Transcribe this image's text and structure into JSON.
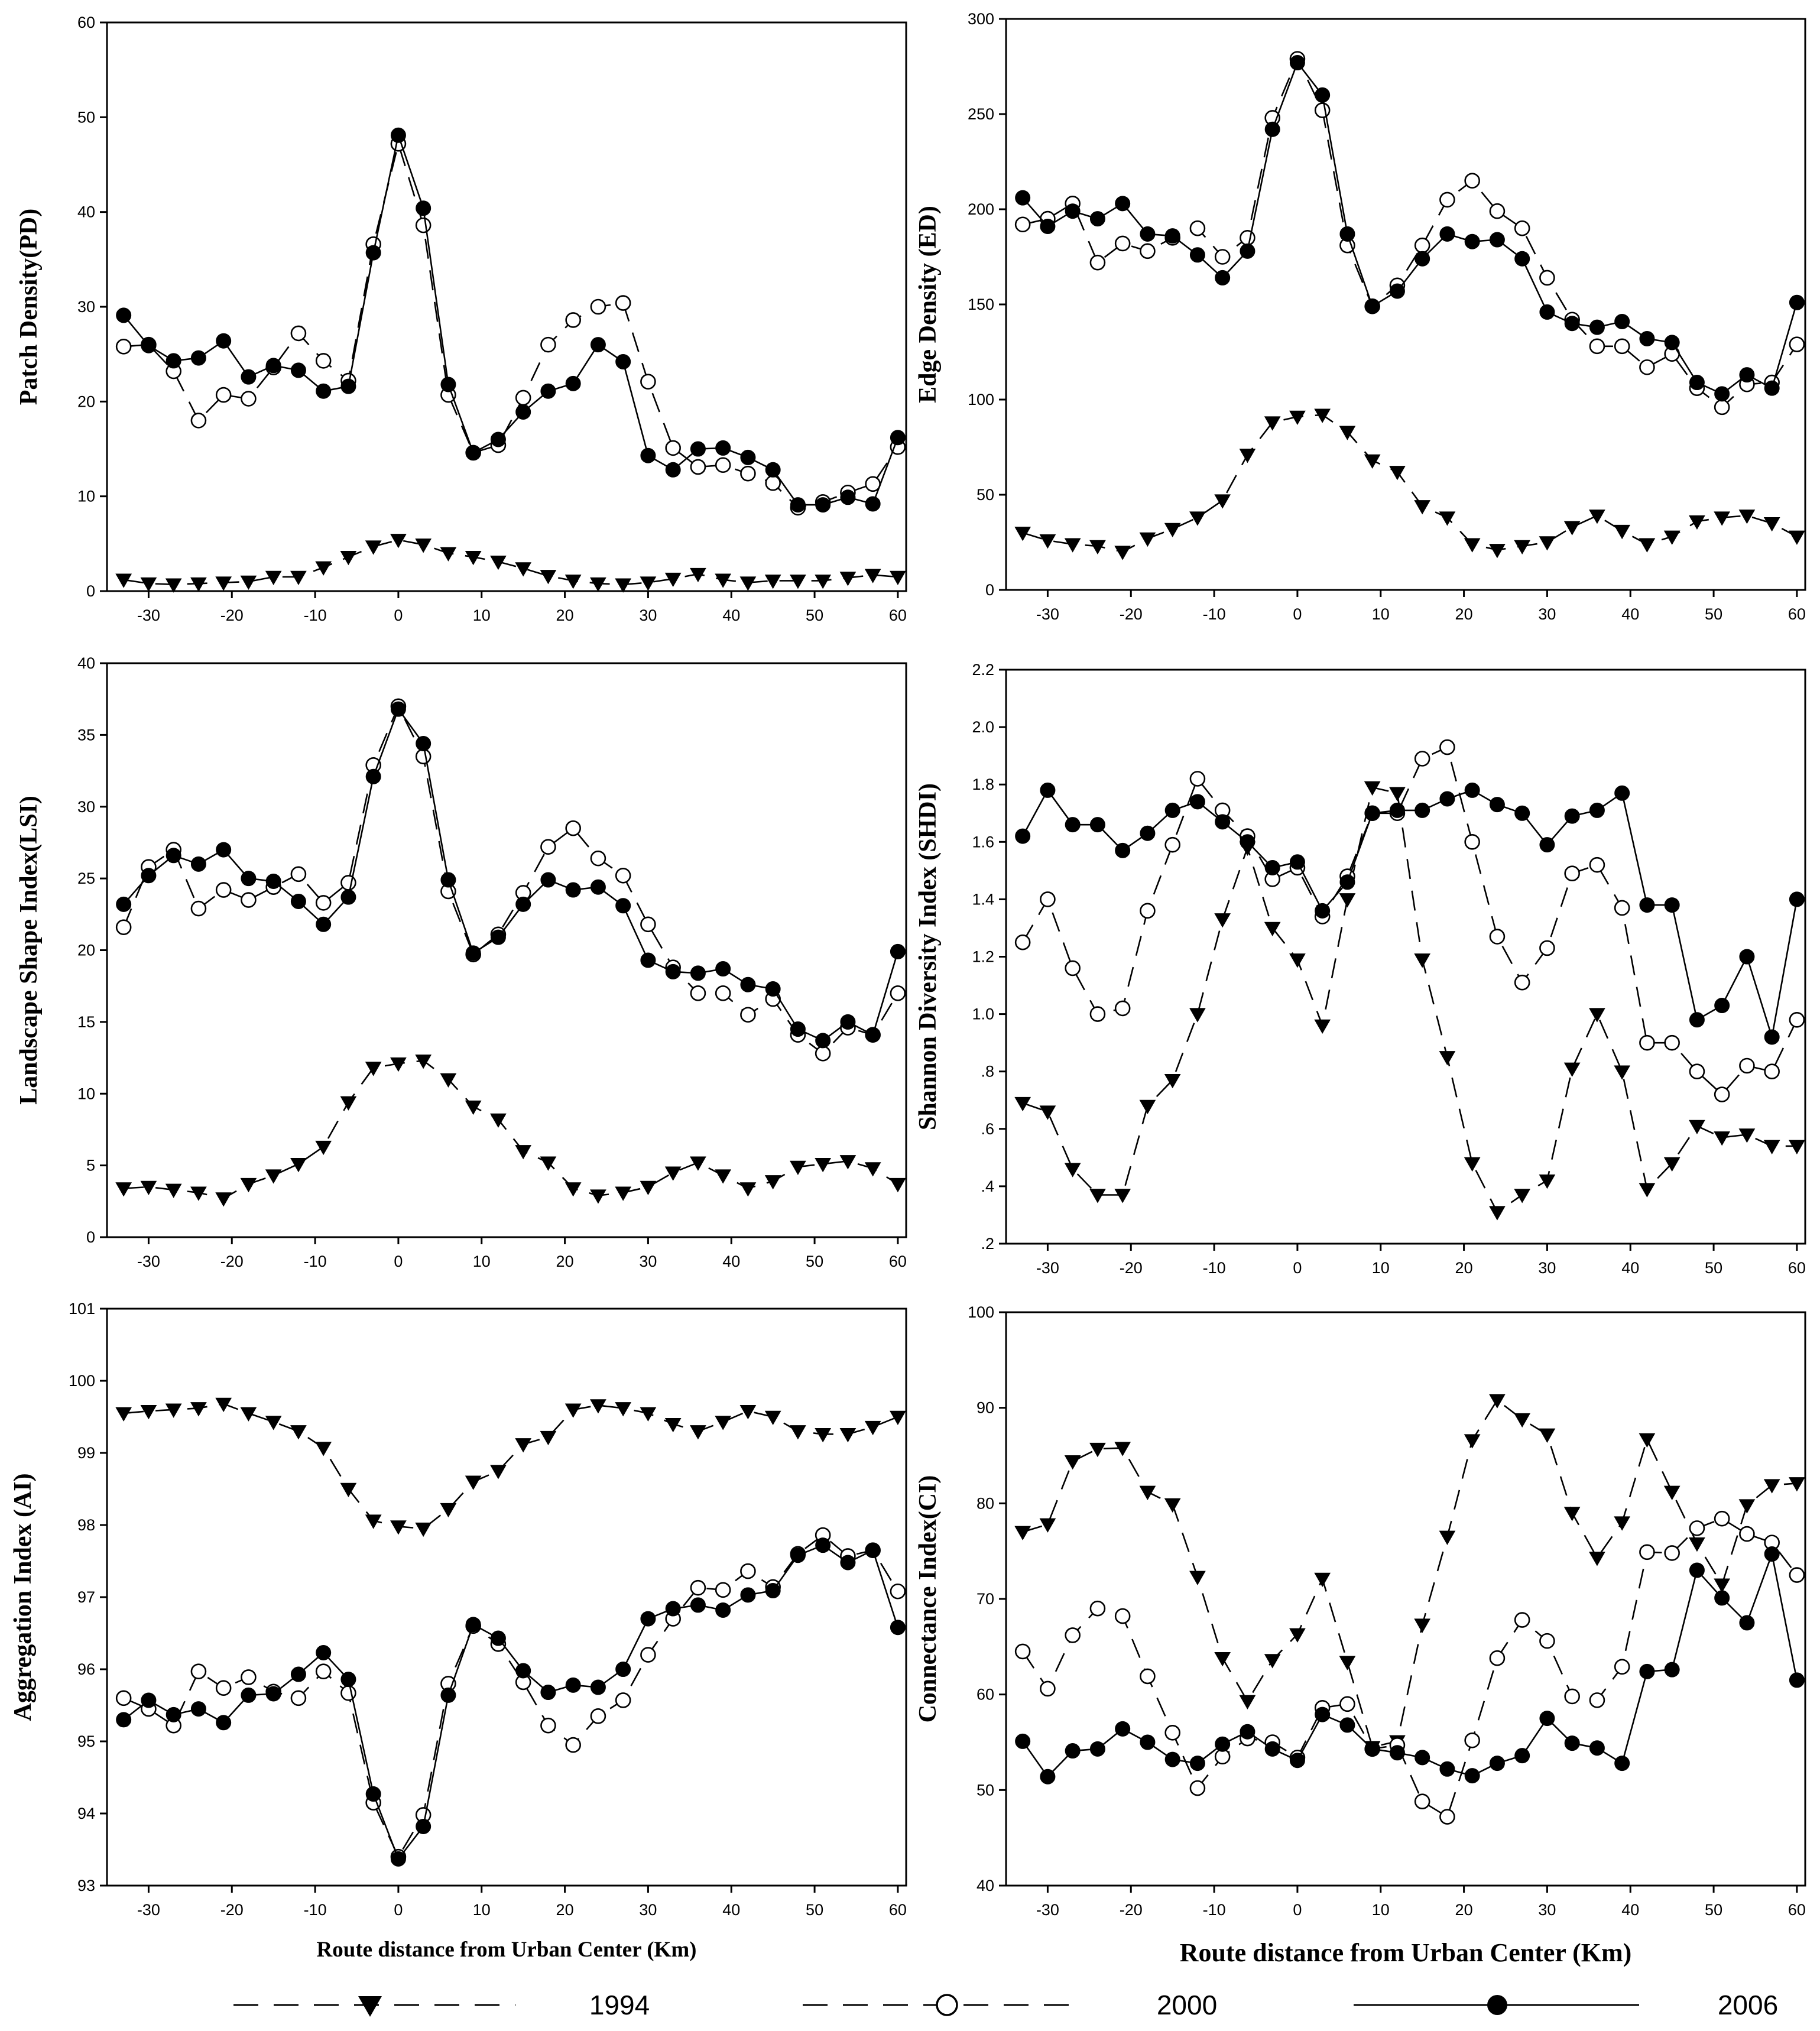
{
  "chart_data": [
    {
      "type": "line",
      "ylabel": "Patch Density(PD)",
      "ylim": [
        0,
        60
      ],
      "yticks": [
        "0",
        "10",
        "20",
        "30",
        "40",
        "50",
        "60"
      ],
      "xlim": [
        -35,
        61
      ],
      "xticks": [
        "-30",
        "-20",
        "-10",
        "0",
        "10",
        "20",
        "30",
        "40",
        "50",
        "60"
      ],
      "x": [
        -33,
        -30,
        -27,
        -24,
        -21,
        -18,
        -15,
        -12,
        -9,
        -6,
        -3,
        0,
        3,
        6,
        9,
        12,
        15,
        18,
        21,
        24,
        27,
        30,
        33,
        36,
        39,
        42,
        45,
        48,
        51,
        54,
        57,
        60
      ],
      "series": [
        {
          "name": "1994",
          "values": [
            1.2,
            0.8,
            0.7,
            0.8,
            0.9,
            1.0,
            1.5,
            1.5,
            2.5,
            3.6,
            4.7,
            5.4,
            4.9,
            4.0,
            3.6,
            3.1,
            2.4,
            1.6,
            1.1,
            0.8,
            0.7,
            0.9,
            1.3,
            1.8,
            1.2,
            0.9,
            1.1,
            1.1,
            1.1,
            1.4,
            1.7,
            1.5
          ]
        },
        {
          "name": "2000",
          "values": [
            25.8,
            26.0,
            23.2,
            18.0,
            20.7,
            20.3,
            23.6,
            27.2,
            24.3,
            22.2,
            36.6,
            47.2,
            38.6,
            20.7,
            14.6,
            15.4,
            20.4,
            26.0,
            28.6,
            30.0,
            30.4,
            22.1,
            15.1,
            13.1,
            13.3,
            12.4,
            11.4,
            8.8,
            9.4,
            10.4,
            11.3,
            15.2
          ]
        },
        {
          "name": "2006",
          "values": [
            29.1,
            25.9,
            24.3,
            24.6,
            26.4,
            22.6,
            23.8,
            23.3,
            21.1,
            21.6,
            35.7,
            48.1,
            40.4,
            21.8,
            14.6,
            16.0,
            18.9,
            21.1,
            21.9,
            26.0,
            24.2,
            14.3,
            12.8,
            15.0,
            15.1,
            14.1,
            12.8,
            9.1,
            9.1,
            9.9,
            9.2,
            16.2
          ]
        }
      ]
    },
    {
      "type": "line",
      "ylabel": "Edge Density (ED)",
      "ylim": [
        0,
        300
      ],
      "yticks": [
        "0",
        "50",
        "100",
        "150",
        "200",
        "250",
        "300"
      ],
      "xlim": [
        -35,
        61
      ],
      "xticks": [
        "-30",
        "-20",
        "-10",
        "0",
        "10",
        "20",
        "30",
        "40",
        "50",
        "60"
      ],
      "x": [
        -33,
        -30,
        -27,
        -24,
        -21,
        -18,
        -15,
        -12,
        -9,
        -6,
        -3,
        0,
        3,
        6,
        9,
        12,
        15,
        18,
        21,
        24,
        27,
        30,
        33,
        36,
        39,
        42,
        45,
        48,
        51,
        54,
        57,
        60
      ],
      "series": [
        {
          "name": "1994",
          "values": [
            30,
            26,
            24,
            23,
            20,
            27,
            32,
            38,
            47,
            71,
            88,
            91,
            92,
            83,
            68,
            62,
            44,
            38,
            24,
            21,
            23,
            25,
            33,
            39,
            31,
            24,
            28,
            36,
            38,
            39,
            35,
            28
          ]
        },
        {
          "name": "2000",
          "values": [
            192,
            195,
            203,
            172,
            182,
            178,
            185,
            190,
            175,
            185,
            248,
            279,
            252,
            181,
            149,
            160,
            181,
            205,
            215,
            199,
            190,
            164,
            142,
            128,
            128,
            117,
            124,
            106,
            96,
            108,
            109,
            129
          ]
        },
        {
          "name": "2006",
          "values": [
            206,
            191,
            199,
            195,
            203,
            187,
            186,
            176,
            164,
            178,
            242,
            277,
            260,
            187,
            149,
            157,
            174,
            187,
            183,
            184,
            174,
            146,
            140,
            138,
            141,
            132,
            130,
            109,
            103,
            113,
            106,
            151
          ]
        }
      ]
    },
    {
      "type": "line",
      "ylabel": "Landscape Shape Index(LSI)",
      "ylim": [
        0,
        40
      ],
      "yticks": [
        "0",
        "5",
        "10",
        "15",
        "20",
        "25",
        "30",
        "35",
        "40"
      ],
      "xlim": [
        -35,
        61
      ],
      "xticks": [
        "-30",
        "-20",
        "-10",
        "0",
        "10",
        "20",
        "30",
        "40",
        "50",
        "60"
      ],
      "x": [
        -33,
        -30,
        -27,
        -24,
        -21,
        -18,
        -15,
        -12,
        -9,
        -6,
        -3,
        0,
        3,
        6,
        9,
        12,
        15,
        18,
        21,
        24,
        27,
        30,
        33,
        36,
        39,
        42,
        45,
        48,
        51,
        54,
        57,
        60
      ],
      "series": [
        {
          "name": "1994",
          "values": [
            3.4,
            3.5,
            3.3,
            3.1,
            2.7,
            3.7,
            4.3,
            5.1,
            6.3,
            9.4,
            11.8,
            12.1,
            12.3,
            11.0,
            9.1,
            8.2,
            6.0,
            5.2,
            3.4,
            2.9,
            3.1,
            3.5,
            4.5,
            5.2,
            4.3,
            3.4,
            3.9,
            4.9,
            5.1,
            5.3,
            4.8,
            3.7
          ]
        },
        {
          "name": "2000",
          "values": [
            21.6,
            25.8,
            27.0,
            22.9,
            24.2,
            23.5,
            24.4,
            25.3,
            23.3,
            24.7,
            32.9,
            37.0,
            33.5,
            24.1,
            19.7,
            21.1,
            24.0,
            27.2,
            28.5,
            26.4,
            25.2,
            21.8,
            18.8,
            17.0,
            17.0,
            15.5,
            16.6,
            14.1,
            12.8,
            14.6,
            14.1,
            17.0
          ]
        },
        {
          "name": "2006",
          "values": [
            23.2,
            25.2,
            26.6,
            26.0,
            27.0,
            25.0,
            24.8,
            23.4,
            21.8,
            23.7,
            32.1,
            36.8,
            34.4,
            24.9,
            19.8,
            20.9,
            23.2,
            24.9,
            24.2,
            24.4,
            23.1,
            19.3,
            18.5,
            18.4,
            18.7,
            17.6,
            17.3,
            14.5,
            13.7,
            15.0,
            14.1,
            19.9
          ]
        }
      ]
    },
    {
      "type": "line",
      "ylabel": "Shannon Diversity Index (SHDI)",
      "ylim": [
        0.2,
        2.2
      ],
      "yticks": [
        ".2",
        ".4",
        ".6",
        ".8",
        "1.0",
        "1.2",
        "1.4",
        "1.6",
        "1.8",
        "2.0",
        "2.2"
      ],
      "xlim": [
        -35,
        61
      ],
      "xticks": [
        "-30",
        "-20",
        "-10",
        "0",
        "10",
        "20",
        "30",
        "40",
        "50",
        "60"
      ],
      "x": [
        -33,
        -30,
        -27,
        -24,
        -21,
        -18,
        -15,
        -12,
        -9,
        -6,
        -3,
        0,
        3,
        6,
        9,
        12,
        15,
        18,
        21,
        24,
        27,
        30,
        33,
        36,
        39,
        42,
        45,
        48,
        51,
        54,
        57,
        60
      ],
      "series": [
        {
          "name": "1994",
          "values": [
            0.69,
            0.66,
            0.46,
            0.37,
            0.37,
            0.68,
            0.77,
            1.0,
            1.33,
            1.58,
            1.3,
            1.19,
            0.96,
            1.4,
            1.79,
            1.77,
            1.19,
            0.85,
            0.48,
            0.31,
            0.37,
            0.42,
            0.81,
            1.0,
            0.8,
            0.39,
            0.48,
            0.61,
            0.57,
            0.58,
            0.54,
            0.54
          ]
        },
        {
          "name": "2000",
          "values": [
            1.25,
            1.4,
            1.16,
            1.0,
            1.02,
            1.36,
            1.59,
            1.82,
            1.71,
            1.62,
            1.47,
            1.51,
            1.34,
            1.48,
            1.7,
            1.7,
            1.89,
            1.93,
            1.6,
            1.27,
            1.11,
            1.23,
            1.49,
            1.52,
            1.37,
            0.9,
            0.9,
            0.8,
            0.72,
            0.82,
            0.8,
            0.98
          ]
        },
        {
          "name": "2006",
          "values": [
            1.62,
            1.78,
            1.66,
            1.66,
            1.57,
            1.63,
            1.71,
            1.74,
            1.67,
            1.6,
            1.51,
            1.53,
            1.36,
            1.46,
            1.7,
            1.71,
            1.71,
            1.75,
            1.78,
            1.73,
            1.7,
            1.59,
            1.69,
            1.71,
            1.77,
            1.38,
            1.38,
            0.98,
            1.03,
            1.2,
            0.92,
            1.4
          ]
        }
      ]
    },
    {
      "type": "line",
      "ylabel": "Aggregation Index (AI)",
      "xlabel": "Route distance from Urban Center (Km)",
      "ylim": [
        93,
        101
      ],
      "yticks": [
        "93",
        "94",
        "95",
        "96",
        "97",
        "98",
        "99",
        "100",
        "101"
      ],
      "xlim": [
        -35,
        61
      ],
      "xticks": [
        "-30",
        "-20",
        "-10",
        "0",
        "10",
        "20",
        "30",
        "40",
        "50",
        "60"
      ],
      "x": [
        -33,
        -30,
        -27,
        -24,
        -21,
        -18,
        -15,
        -12,
        -9,
        -6,
        -3,
        0,
        3,
        6,
        9,
        12,
        15,
        18,
        21,
        24,
        27,
        30,
        33,
        36,
        39,
        42,
        45,
        48,
        51,
        54,
        57,
        60
      ],
      "series": [
        {
          "name": "1994",
          "values": [
            99.55,
            99.58,
            99.6,
            99.62,
            99.68,
            99.55,
            99.43,
            99.3,
            99.07,
            98.5,
            98.06,
            97.98,
            97.95,
            98.22,
            98.6,
            98.75,
            99.12,
            99.22,
            99.6,
            99.66,
            99.62,
            99.55,
            99.4,
            99.3,
            99.43,
            99.58,
            99.5,
            99.3,
            99.26,
            99.26,
            99.36,
            99.5
          ]
        },
        {
          "name": "2000",
          "values": [
            95.6,
            95.45,
            95.22,
            95.97,
            95.74,
            95.89,
            95.69,
            95.6,
            95.97,
            95.67,
            94.15,
            93.4,
            93.98,
            95.8,
            96.6,
            96.35,
            95.82,
            95.22,
            94.95,
            95.35,
            95.57,
            96.2,
            96.7,
            97.13,
            97.1,
            97.36,
            97.14,
            97.6,
            97.86,
            97.57,
            97.65,
            97.08
          ]
        },
        {
          "name": "2006",
          "values": [
            95.3,
            95.57,
            95.37,
            95.45,
            95.26,
            95.64,
            95.66,
            95.93,
            96.23,
            95.86,
            94.27,
            93.37,
            93.82,
            95.64,
            96.62,
            96.43,
            95.98,
            95.68,
            95.78,
            95.75,
            96.0,
            96.7,
            96.84,
            96.89,
            96.82,
            97.03,
            97.09,
            97.58,
            97.72,
            97.48,
            97.65,
            96.58
          ]
        }
      ]
    },
    {
      "type": "line",
      "ylabel": "Connectance Index(CI)",
      "xlabel": "Route distance from Urban Center (Km)",
      "ylim": [
        40,
        100
      ],
      "yticks": [
        "40",
        "50",
        "60",
        "70",
        "80",
        "90",
        "100"
      ],
      "xlim": [
        -35,
        61
      ],
      "xticks": [
        "-30",
        "-20",
        "-10",
        "0",
        "10",
        "20",
        "30",
        "40",
        "50",
        "60"
      ],
      "x": [
        -33,
        -30,
        -27,
        -24,
        -21,
        -18,
        -15,
        -12,
        -9,
        -6,
        -3,
        0,
        3,
        6,
        9,
        12,
        15,
        18,
        21,
        24,
        27,
        30,
        33,
        36,
        39,
        42,
        45,
        48,
        51,
        54,
        57,
        60
      ],
      "series": [
        {
          "name": "1994",
          "values": [
            77.0,
            77.8,
            84.4,
            85.7,
            85.8,
            81.2,
            79.9,
            72.3,
            63.8,
            59.3,
            63.6,
            66.3,
            72.1,
            63.4,
            54.5,
            55.1,
            67.3,
            76.5,
            86.6,
            90.8,
            88.8,
            87.2,
            79.0,
            74.3,
            78.0,
            86.7,
            81.2,
            75.8,
            71.5,
            79.8,
            81.9,
            82.1
          ]
        },
        {
          "name": "2000",
          "values": [
            64.5,
            60.6,
            66.2,
            69.0,
            68.2,
            61.9,
            56.0,
            50.2,
            53.5,
            55.4,
            55.0,
            53.4,
            58.6,
            59.0,
            54.3,
            54.7,
            48.8,
            47.2,
            55.2,
            63.8,
            67.8,
            65.6,
            59.8,
            59.4,
            62.9,
            74.9,
            74.8,
            77.4,
            78.4,
            76.8,
            75.9,
            72.5
          ]
        },
        {
          "name": "2006",
          "values": [
            55.1,
            51.4,
            54.1,
            54.3,
            56.4,
            55.0,
            53.2,
            52.8,
            54.8,
            56.1,
            54.3,
            53.1,
            57.9,
            56.8,
            54.3,
            53.9,
            53.4,
            52.2,
            51.5,
            52.8,
            53.6,
            57.5,
            54.9,
            54.4,
            52.8,
            62.4,
            62.6,
            73.0,
            70.1,
            67.5,
            74.7,
            61.5
          ]
        }
      ]
    }
  ],
  "legend": {
    "items": [
      {
        "label": "1994",
        "marker": "filled-down-triangle",
        "line": "dashed"
      },
      {
        "label": "2000",
        "marker": "open-circle",
        "line": "dashed"
      },
      {
        "label": "2006",
        "marker": "filled-circle",
        "line": "solid"
      }
    ]
  },
  "x_axis_title": "Route distance from Urban Center (Km)"
}
